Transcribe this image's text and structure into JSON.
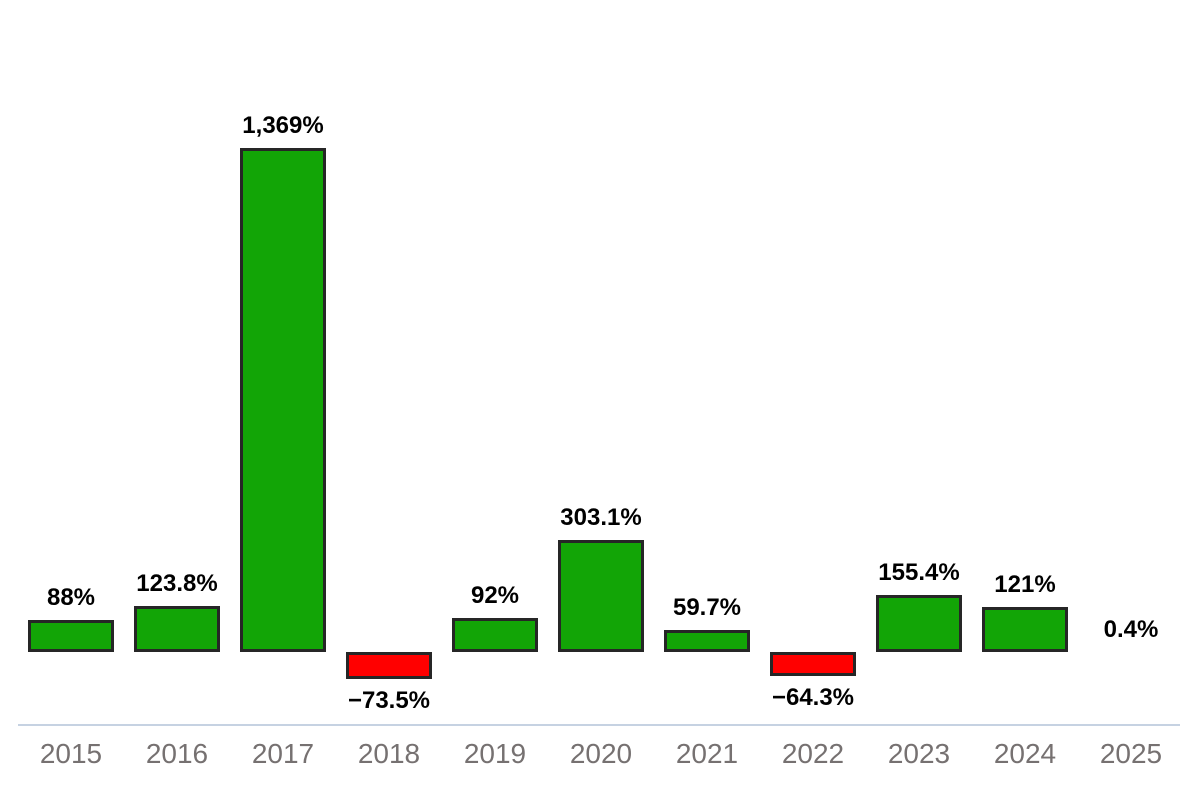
{
  "chart_data": {
    "type": "bar",
    "title": "",
    "xlabel": "",
    "ylabel": "",
    "categories": [
      "2015",
      "2016",
      "2017",
      "2018",
      "2019",
      "2020",
      "2021",
      "2022",
      "2023",
      "2024",
      "2025"
    ],
    "values": [
      88,
      123.8,
      1369,
      -73.5,
      92,
      303.1,
      59.7,
      -64.3,
      155.4,
      121,
      0.4
    ],
    "value_labels": [
      "88%",
      "123.8%",
      "1,369%",
      "−73.5%",
      "92%",
      "303.1%",
      "59.7%",
      "−64.3%",
      "155.4%",
      "121%",
      "0.4%"
    ],
    "ylim": [
      -100,
      1450
    ],
    "grid": false,
    "legend": false,
    "colors": {
      "positive_bar": "#12A506",
      "negative_bar": "#FF0000",
      "bar_border": "#262626",
      "axis_line": "#C6D2E2",
      "value_label": "#000000",
      "category_label": "#767171",
      "background": "#FFFFFF"
    }
  }
}
